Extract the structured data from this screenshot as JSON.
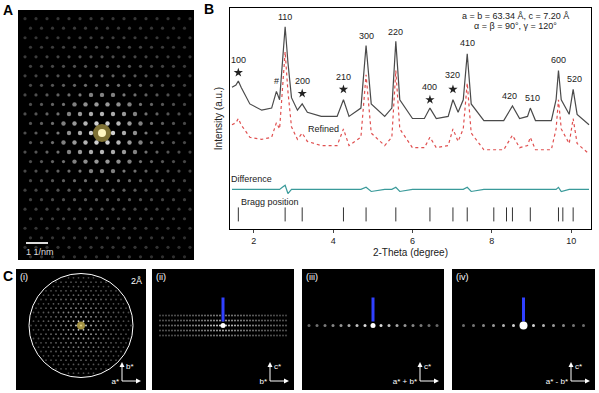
{
  "chart_data": {
    "type": "line",
    "x_label": "2-Theta (degree)",
    "y_label": "Intensity (a.u.)",
    "x": [
      1.45,
      1.55,
      1.61,
      1.68,
      1.9,
      2.2,
      2.45,
      2.57,
      2.65,
      2.72,
      2.79,
      2.86,
      2.95,
      3.1,
      3.22,
      3.35,
      3.7,
      4.1,
      4.26,
      4.4,
      4.7,
      4.83,
      4.96,
      5.3,
      5.48,
      5.58,
      5.68,
      6.0,
      6.3,
      6.44,
      6.6,
      6.9,
      7.02,
      7.15,
      7.28,
      7.38,
      7.48,
      7.8,
      8.3,
      8.52,
      8.7,
      8.9,
      8.97,
      9.1,
      9.5,
      9.62,
      9.68,
      9.75,
      9.95,
      10.05,
      10.15,
      10.45
    ],
    "series": [
      {
        "type": "line",
        "color": "#4a4a4a",
        "line_style": "solid",
        "values": [
          68,
          69,
          71,
          68,
          60,
          57,
          58,
          66,
          62,
          78,
          97,
          80,
          63,
          57,
          60,
          56,
          54,
          54,
          62,
          54,
          58,
          88,
          60,
          54,
          58,
          90,
          62,
          53,
          53,
          58,
          53,
          54,
          62,
          56,
          62,
          84,
          60,
          52,
          52,
          59,
          53,
          54,
          58,
          52,
          52,
          62,
          76,
          62,
          55,
          67,
          55,
          50
        ]
      },
      {
        "type": "line",
        "color": "#e05050",
        "line_style": "dot",
        "values": [
          50,
          51,
          53,
          50,
          44,
          43,
          44,
          51,
          48,
          65,
          85,
          66,
          49,
          43,
          46,
          42,
          40,
          40,
          48,
          40,
          44,
          74,
          46,
          40,
          44,
          76,
          48,
          39,
          39,
          44,
          39,
          40,
          48,
          42,
          48,
          70,
          46,
          38,
          38,
          45,
          39,
          40,
          44,
          38,
          38,
          48,
          62,
          48,
          41,
          53,
          41,
          36
        ]
      },
      {
        "type": "line",
        "color": "#3a9a9a",
        "line_style": "solid",
        "values": [
          19,
          19,
          19,
          19,
          19,
          19,
          19,
          19,
          19,
          20,
          21,
          17,
          19,
          19,
          19,
          19,
          19,
          19,
          19,
          19,
          19,
          20,
          18,
          19,
          19,
          20,
          18,
          19,
          19,
          19,
          19,
          19,
          19,
          19,
          19,
          20,
          18,
          19,
          19,
          19,
          19,
          19,
          19,
          19,
          19,
          19,
          20,
          18,
          19,
          19,
          19,
          19
        ]
      },
      {
        "type": "scatter",
        "color": "#333333",
        "marker": "line-ns",
        "x": [
          1.61,
          2.79,
          3.22,
          4.26,
          4.83,
          5.58,
          6.44,
          7.02,
          7.38,
          8.05,
          8.37,
          8.52,
          8.97,
          9.68,
          9.79,
          10.05
        ],
        "values": [
          7,
          7,
          7,
          7,
          7,
          7,
          7,
          7,
          7,
          7,
          7,
          7,
          7,
          7,
          7,
          7
        ]
      },
      {
        "type": "scatter",
        "color": "#222222",
        "marker": "star",
        "x": [
          1.61,
          3.22,
          4.26,
          6.44,
          7.02
        ],
        "values": [
          75,
          65,
          67,
          62,
          67
        ]
      }
    ],
    "annotations": [
      {
        "text": "100",
        "x": 1.61,
        "y": 81
      },
      {
        "text": "#",
        "x": 2.57,
        "y": 71
      },
      {
        "text": "110",
        "x": 2.79,
        "y": 101.5
      },
      {
        "text": "200",
        "x": 3.22,
        "y": 71
      },
      {
        "text": "210",
        "x": 4.26,
        "y": 73
      },
      {
        "text": "300",
        "x": 4.83,
        "y": 92.5
      },
      {
        "text": "220",
        "x": 5.58,
        "y": 94.5
      },
      {
        "text": "400",
        "x": 6.44,
        "y": 68
      },
      {
        "text": "320",
        "x": 7.02,
        "y": 74
      },
      {
        "text": "410",
        "x": 7.38,
        "y": 89
      },
      {
        "text": "420",
        "x": 8.45,
        "y": 64
      },
      {
        "text": "510",
        "x": 9.02,
        "y": 63
      },
      {
        "text": "600",
        "x": 9.68,
        "y": 81
      },
      {
        "text": "520",
        "x": 10.08,
        "y": 72
      },
      {
        "text": "a = b = 63.34 Å, c = 7.20 Å",
        "x": 8.6,
        "y": 102
      },
      {
        "text": "α = β = 90°, γ = 120°",
        "x": 8.6,
        "y": 97.5
      },
      {
        "text": "Refined",
        "x": 3.75,
        "y": 48
      },
      {
        "text": "Difference",
        "x": 1.95,
        "y": 24
      },
      {
        "text": "Bragg position",
        "x": 2.4,
        "y": 13
      }
    ],
    "xlim": [
      1.4,
      10.5
    ],
    "xticks": [
      2,
      4,
      6,
      8,
      10
    ],
    "ylim": [
      0,
      106
    ],
    "tick_labels": "x",
    "grid": false
  },
  "panels": {
    "A": {
      "label": "A",
      "scale_bar": "1 1/nm"
    },
    "B": {
      "label": "B"
    },
    "C": {
      "label": "C",
      "images": [
        {
          "label": "(i)",
          "resolution": "2Å",
          "vertical_axis": "b*",
          "horizontal_axis": "a*"
        },
        {
          "label": "(ii)",
          "vertical_axis": "c*",
          "horizontal_axis": "b*"
        },
        {
          "label": "(iii)",
          "vertical_axis": "c*",
          "horizontal_axis": "a* + b*"
        },
        {
          "label": "(iv)",
          "vertical_axis": "c*",
          "horizontal_axis": "a* - b*"
        }
      ]
    }
  }
}
